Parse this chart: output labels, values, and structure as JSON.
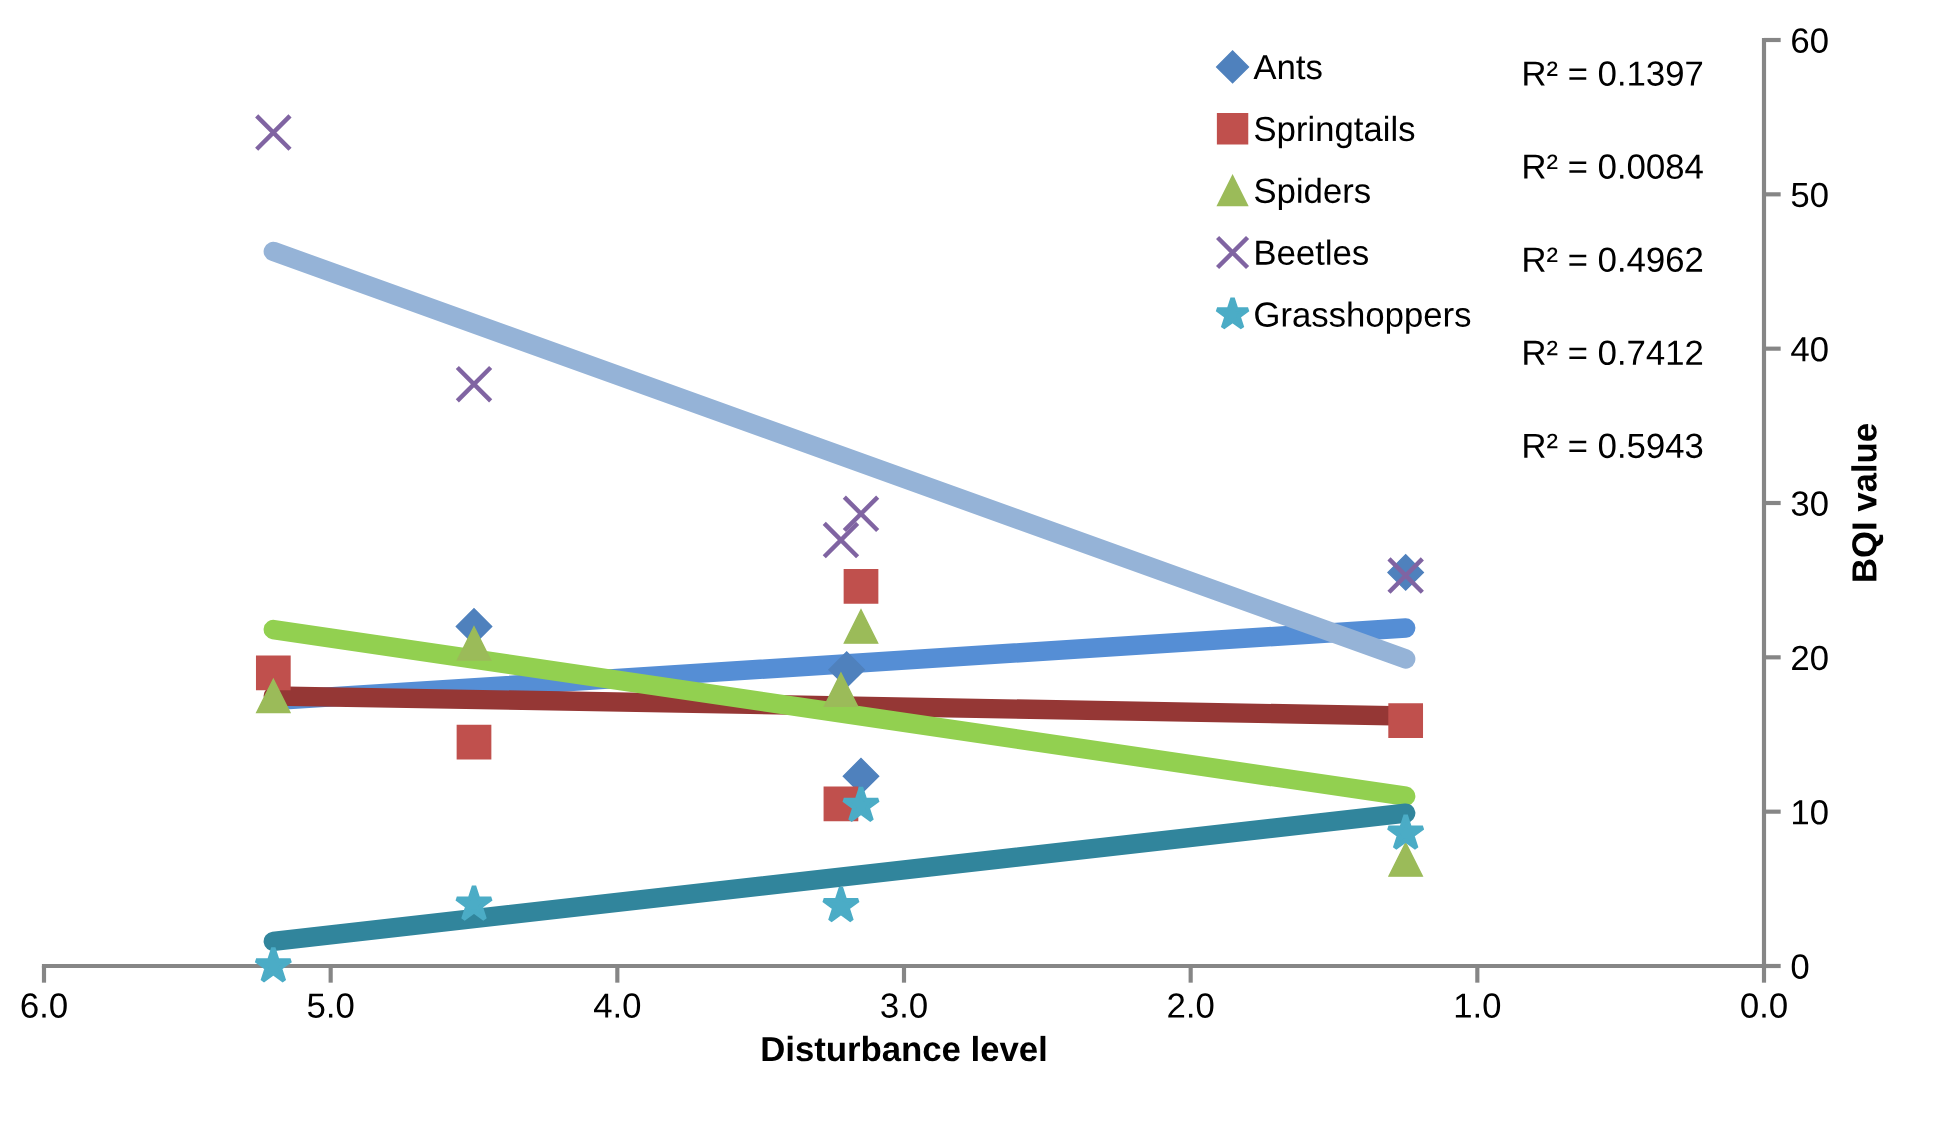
{
  "chart_data": {
    "type": "scatter",
    "xlabel": "Disturbance level",
    "ylabel": "BQI value",
    "xlim": [
      6,
      0
    ],
    "ylim": [
      0,
      60
    ],
    "xticks": [
      {
        "value": 6,
        "label": "6.0"
      },
      {
        "value": 5,
        "label": "5.0"
      },
      {
        "value": 4,
        "label": "4.0"
      },
      {
        "value": 3,
        "label": "3.0"
      },
      {
        "value": 2,
        "label": "2.0"
      },
      {
        "value": 1,
        "label": "1.0"
      },
      {
        "value": 0,
        "label": "0.0"
      }
    ],
    "yticks": [
      0,
      10,
      20,
      30,
      40,
      50,
      60
    ],
    "grid": false,
    "legend": "top right",
    "series": [
      {
        "name": "Ants",
        "color": "#4f81bd",
        "marker": "diamond",
        "x": [
          4.5,
          3.2,
          3.15,
          1.25
        ],
        "values": [
          22.0,
          19.2,
          12.3,
          25.5
        ]
      },
      {
        "name": "Springtails",
        "color": "#c0504d",
        "marker": "square",
        "x": [
          5.2,
          4.5,
          3.15,
          3.22,
          1.25
        ],
        "values": [
          19.0,
          14.5,
          24.6,
          10.5,
          15.9
        ]
      },
      {
        "name": "Spiders",
        "color": "#9bbb59",
        "marker": "triangle",
        "x": [
          5.2,
          4.5,
          3.15,
          3.22,
          1.25
        ],
        "values": [
          17.5,
          20.9,
          22.0,
          17.9,
          6.9
        ]
      },
      {
        "name": "Beetles",
        "color": "#8064a2",
        "marker": "cross",
        "x": [
          5.2,
          4.5,
          3.15,
          3.22,
          1.25
        ],
        "values": [
          54.0,
          37.7,
          29.3,
          27.6,
          25.3
        ]
      },
      {
        "name": "Grasshoppers",
        "color": "#4bacc6",
        "marker": "star",
        "x": [
          5.2,
          4.5,
          3.22,
          3.15,
          1.25
        ],
        "values": [
          0.0,
          4.0,
          3.9,
          10.4,
          8.6
        ]
      },
      {
        "type": "line",
        "color": "#558ed5",
        "x": [
          5.2,
          1.25
        ],
        "values": [
          17.2,
          21.9
        ]
      },
      {
        "type": "line",
        "color": "#953735",
        "x": [
          5.2,
          1.25
        ],
        "values": [
          17.5,
          16.2
        ]
      },
      {
        "type": "line",
        "color": "#92d050",
        "x": [
          5.2,
          1.25
        ],
        "values": [
          21.8,
          11.0
        ]
      },
      {
        "type": "line",
        "color": "#95b3d7",
        "x": [
          5.2,
          1.25
        ],
        "values": [
          46.3,
          19.9
        ]
      },
      {
        "type": "line",
        "color": "#31859c",
        "x": [
          5.2,
          1.25
        ],
        "values": [
          1.6,
          9.9
        ]
      }
    ],
    "annotations": [
      "R² = 0.1397",
      "R² = 0.0084",
      "R² = 0.4962",
      "R² = 0.7412",
      "R² = 0.5943"
    ]
  }
}
